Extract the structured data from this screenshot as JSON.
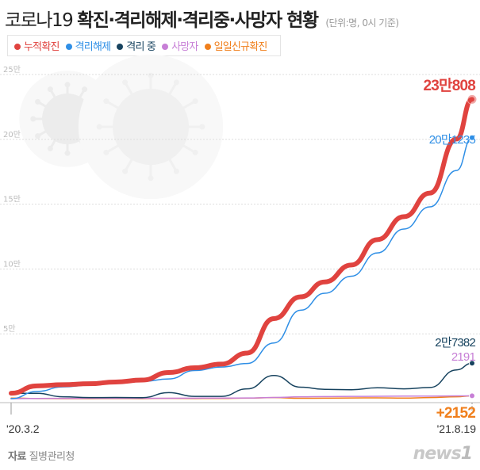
{
  "title_light": "코로나19",
  "title_bold": "확진·격리해제·격리중·사망자 현황",
  "unit_note": "(단위:명, 0시 기준)",
  "source_label": "자료",
  "source_name": "질병관리청",
  "logo_text": "news1",
  "chart_data": {
    "type": "line",
    "title": "코로나19 확진·격리해제·격리중·사망자 현황",
    "ylim": [
      0,
      250000
    ],
    "yticks": [
      {
        "v": 50000,
        "label": "5만"
      },
      {
        "v": 100000,
        "label": "10만"
      },
      {
        "v": 150000,
        "label": "15만"
      },
      {
        "v": 200000,
        "label": "20만"
      },
      {
        "v": 250000,
        "label": "25만"
      }
    ],
    "grid": true,
    "legend_position": "top-left",
    "x_start_label": "'20.3.2",
    "x_end_label": "'21.8.19",
    "x": [
      "2020-03-02",
      "2020-04-01",
      "2020-05-01",
      "2020-06-01",
      "2020-07-01",
      "2020-08-01",
      "2020-09-01",
      "2020-10-01",
      "2020-11-01",
      "2020-12-01",
      "2021-01-01",
      "2021-02-01",
      "2021-03-01",
      "2021-04-01",
      "2021-05-01",
      "2021-06-01",
      "2021-07-01",
      "2021-08-01",
      "2021-08-19"
    ],
    "series": [
      {
        "name": "누적확진",
        "color": "#e0433f",
        "values": [
          4212,
          9887,
          10774,
          11503,
          12850,
          14336,
          20182,
          23812,
          26635,
          35163,
          61769,
          78508,
          90029,
          103088,
          122634,
          140340,
          158549,
          200296,
          230808
        ],
        "end_label": "23만808"
      },
      {
        "name": "격리해제",
        "color": "#2f8fe6",
        "values": [
          30,
          5567,
          9072,
          10422,
          11684,
          13233,
          15198,
          21666,
          24395,
          27103,
          42953,
          68236,
          81268,
          94447,
          112380,
          130816,
          147910,
          176000,
          201235
        ],
        "end_label": "20만1235"
      },
      {
        "name": "격리 중",
        "color": "#17435f",
        "values": [
          4160,
          4155,
          1454,
          810,
          884,
          802,
          4660,
          1731,
          1774,
          7534,
          17899,
          8852,
          7156,
          6904,
          8421,
          7565,
          8615,
          22183,
          27382
        ],
        "end_label": "2만7382"
      },
      {
        "name": "사망자",
        "color": "#c77fd6",
        "values": [
          22,
          165,
          248,
          271,
          282,
          301,
          324,
          415,
          466,
          526,
          917,
          1420,
          1605,
          1737,
          1833,
          1959,
          2024,
          2113,
          2191
        ],
        "end_label": "2191"
      },
      {
        "name": "일일신규확진",
        "color": "#f07f1c",
        "values": [
          476,
          101,
          9,
          35,
          51,
          31,
          235,
          113,
          124,
          451,
          824,
          305,
          355,
          551,
          627,
          459,
          826,
          1442,
          2152
        ],
        "end_label": "+2152"
      }
    ]
  }
}
